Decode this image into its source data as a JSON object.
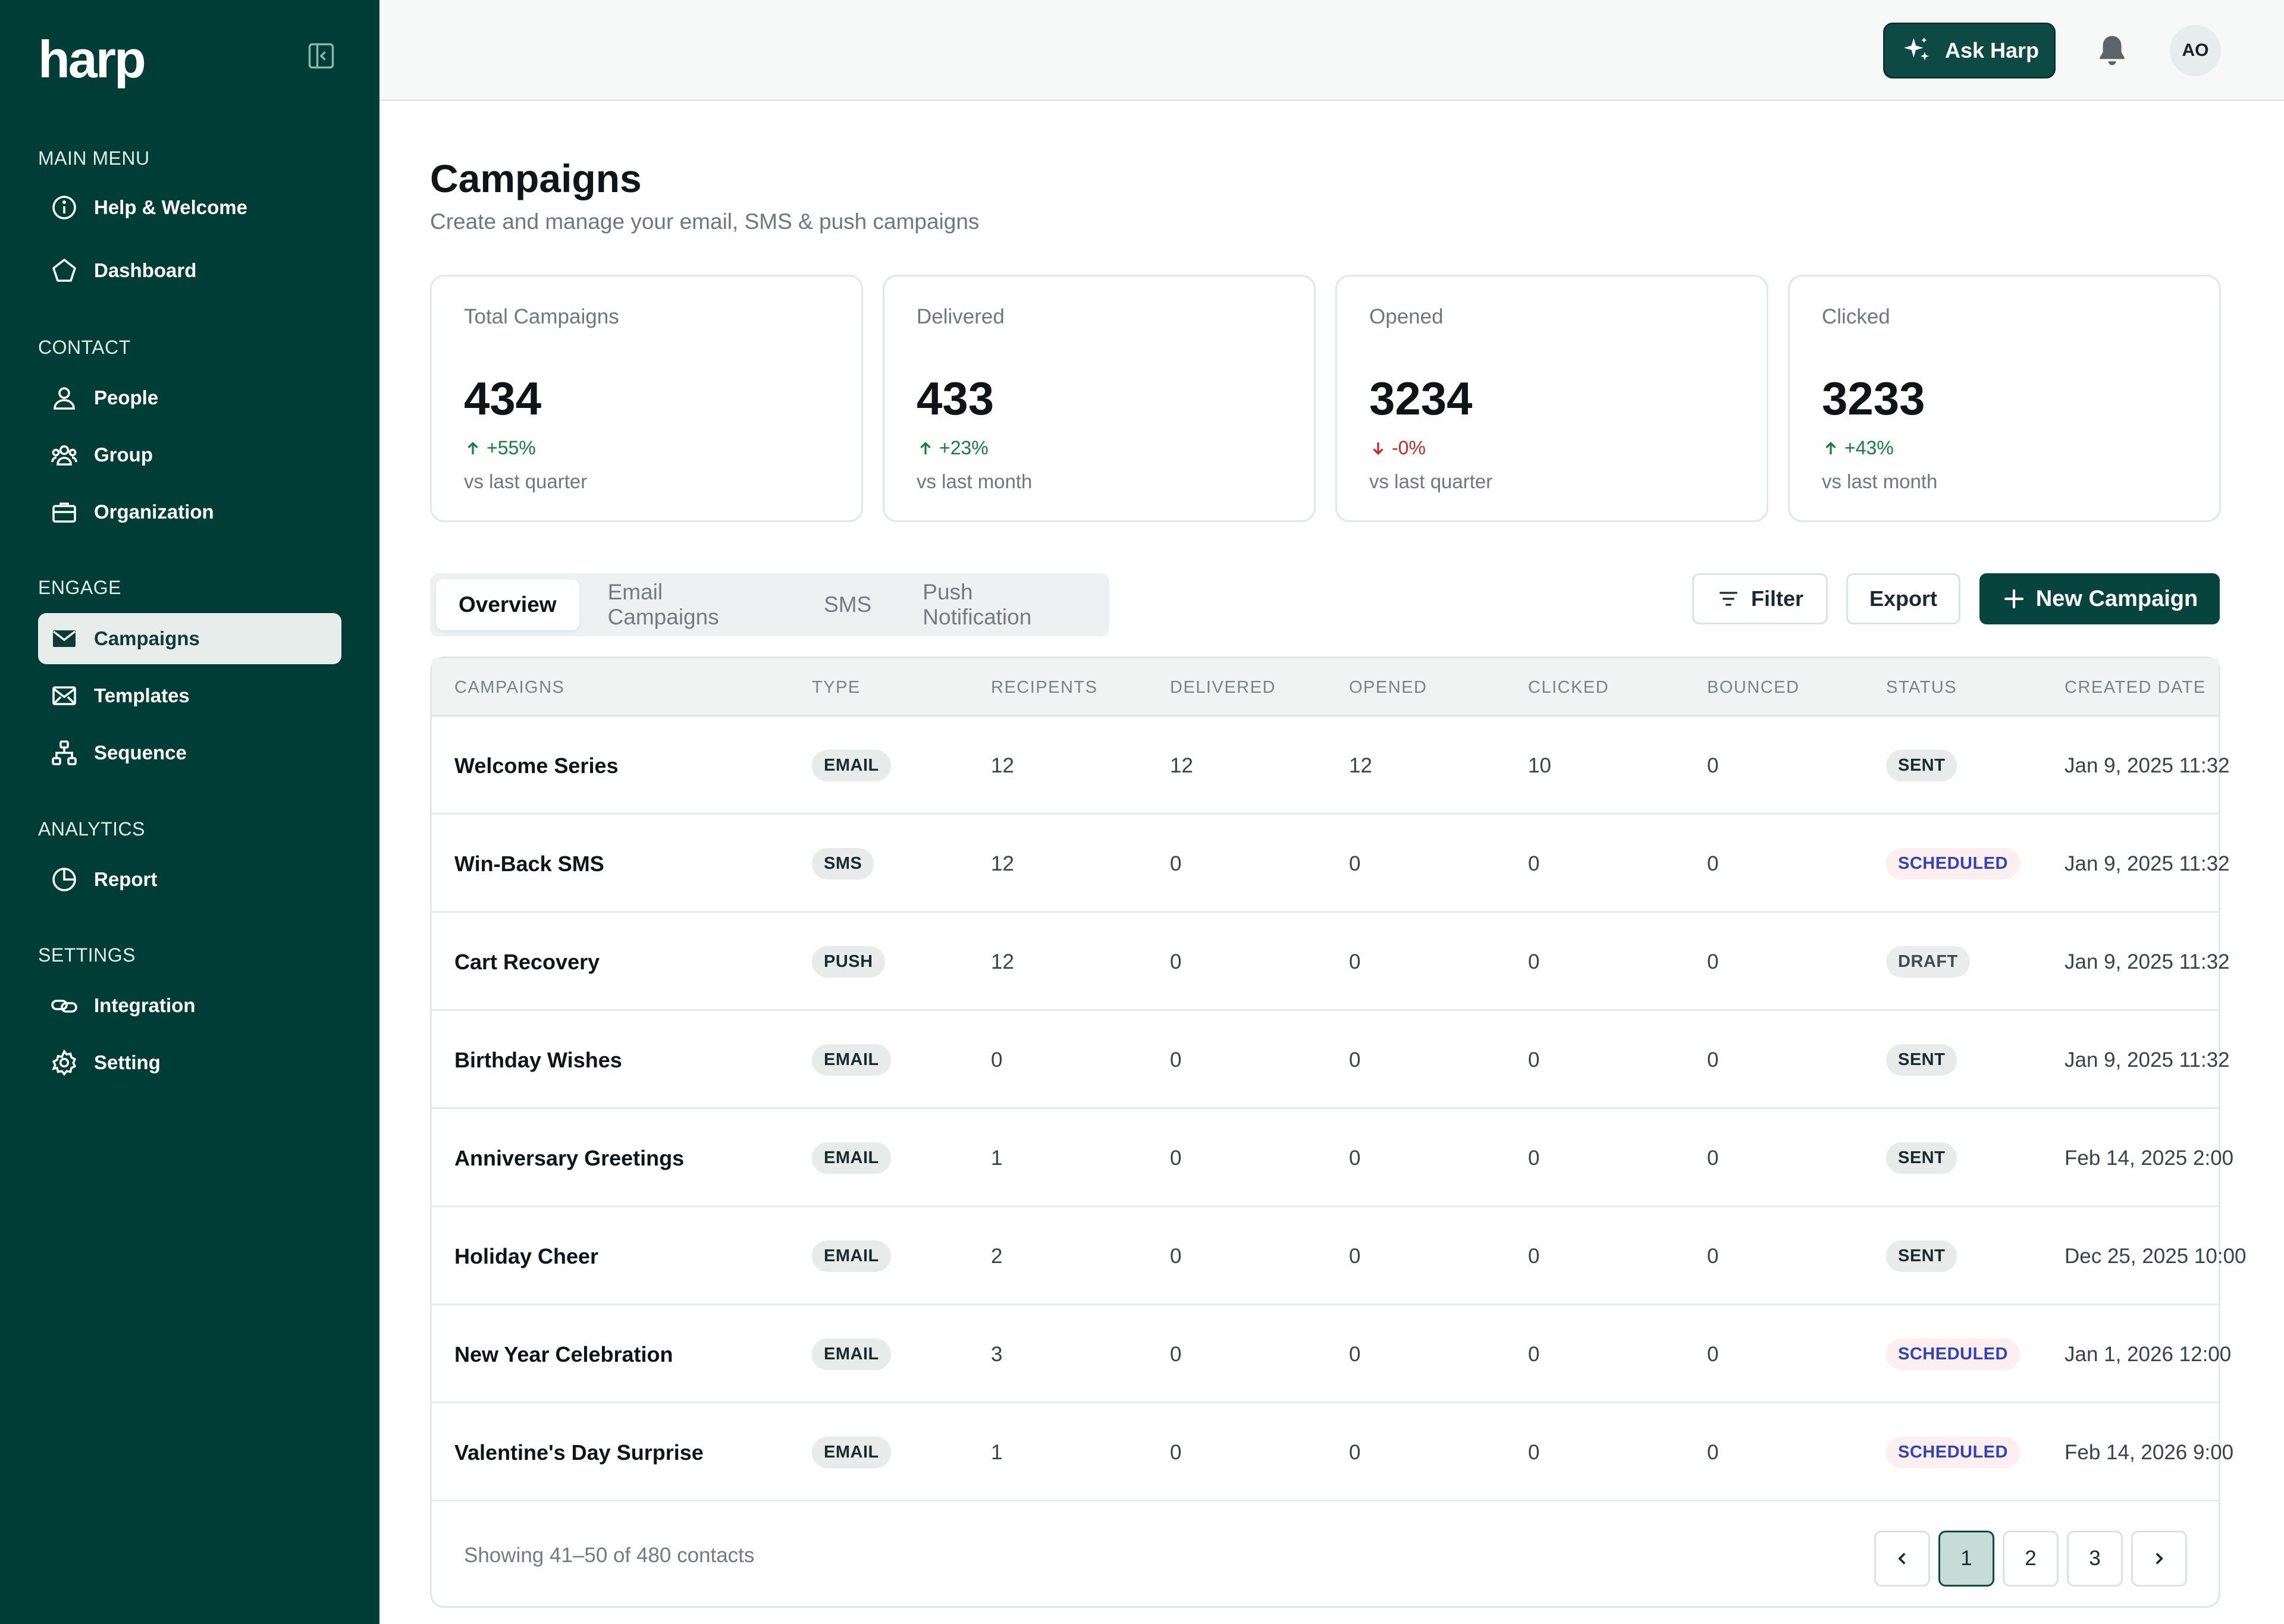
{
  "brand": {
    "logo": "harp"
  },
  "sidebar": {
    "sections": [
      {
        "title": "MAIN MENU",
        "items": [
          {
            "label": "Help & Welcome",
            "icon": "info-icon"
          },
          {
            "label": "Dashboard",
            "icon": "pentagon-icon"
          }
        ]
      },
      {
        "title": "CONTACT",
        "items": [
          {
            "label": "People",
            "icon": "user-icon"
          },
          {
            "label": "Group",
            "icon": "users-icon"
          },
          {
            "label": "Organization",
            "icon": "briefcase-icon"
          }
        ]
      },
      {
        "title": "ENGAGE",
        "items": [
          {
            "label": "Campaigns",
            "icon": "mail-icon",
            "active": true
          },
          {
            "label": "Templates",
            "icon": "mail-template-icon"
          },
          {
            "label": "Sequence",
            "icon": "sitemap-icon"
          }
        ]
      },
      {
        "title": "ANALYTICS",
        "items": [
          {
            "label": "Report",
            "icon": "pie-chart-icon"
          }
        ]
      },
      {
        "title": "SETTINGS",
        "items": [
          {
            "label": "Integration",
            "icon": "link-icon"
          },
          {
            "label": "Setting",
            "icon": "gear-icon"
          }
        ]
      }
    ]
  },
  "topbar": {
    "ask_label": "Ask Harp",
    "avatar_initials": "AO"
  },
  "page": {
    "title": "Campaigns",
    "subtitle": "Create and manage your email, SMS & push campaigns"
  },
  "stats": [
    {
      "label": "Total Campaigns",
      "value": "434",
      "change": "+55%",
      "trend": "up",
      "period": "vs last quarter"
    },
    {
      "label": "Delivered",
      "value": "433",
      "change": "+23%",
      "trend": "up",
      "period": "vs last month"
    },
    {
      "label": "Opened",
      "value": "3234",
      "change": "-0%",
      "trend": "down",
      "period": "vs last quarter"
    },
    {
      "label": "Clicked",
      "value": "3233",
      "change": "+43%",
      "trend": "up",
      "period": "vs last month"
    }
  ],
  "tabs": [
    "Overview",
    "Email Campaigns",
    "SMS",
    "Push Notification"
  ],
  "actions": {
    "filter": "Filter",
    "export": "Export",
    "new_campaign": "New Campaign"
  },
  "table": {
    "columns": [
      "CAMPAIGNS",
      "TYPE",
      "RECIPENTS",
      "DELIVERED",
      "OPENED",
      "CLICKED",
      "BOUNCED",
      "STATUS",
      "CREATED DATE"
    ],
    "rows": [
      {
        "name": "Welcome Series",
        "type": "EMAIL",
        "recipients": "12",
        "delivered": "12",
        "opened": "12",
        "clicked": "10",
        "bounced": "0",
        "status": "SENT",
        "date": "Jan 9, 2025 11:32"
      },
      {
        "name": "Win-Back SMS",
        "type": "SMS",
        "recipients": "12",
        "delivered": "0",
        "opened": "0",
        "clicked": "0",
        "bounced": "0",
        "status": "SCHEDULED",
        "date": "Jan 9, 2025 11:32"
      },
      {
        "name": "Cart Recovery",
        "type": "PUSH",
        "recipients": "12",
        "delivered": "0",
        "opened": "0",
        "clicked": "0",
        "bounced": "0",
        "status": "DRAFT",
        "date": "Jan 9, 2025 11:32"
      },
      {
        "name": "Birthday Wishes",
        "type": "EMAIL",
        "recipients": "0",
        "delivered": "0",
        "opened": "0",
        "clicked": "0",
        "bounced": "0",
        "status": "SENT",
        "date": "Jan 9, 2025 11:32"
      },
      {
        "name": "Anniversary Greetings",
        "type": "EMAIL",
        "recipients": "1",
        "delivered": "0",
        "opened": "0",
        "clicked": "0",
        "bounced": "0",
        "status": "SENT",
        "date": "Feb 14, 2025 2:00"
      },
      {
        "name": "Holiday Cheer",
        "type": "EMAIL",
        "recipients": "2",
        "delivered": "0",
        "opened": "0",
        "clicked": "0",
        "bounced": "0",
        "status": "SENT",
        "date": "Dec 25, 2025 10:00"
      },
      {
        "name": "New Year Celebration",
        "type": "EMAIL",
        "recipients": "3",
        "delivered": "0",
        "opened": "0",
        "clicked": "0",
        "bounced": "0",
        "status": "SCHEDULED",
        "date": "Jan 1, 2026 12:00"
      },
      {
        "name": "Valentine's Day Surprise",
        "type": "EMAIL",
        "recipients": "1",
        "delivered": "0",
        "opened": "0",
        "clicked": "0",
        "bounced": "0",
        "status": "SCHEDULED",
        "date": "Feb 14, 2026 9:00"
      }
    ]
  },
  "pagination": {
    "summary": "Showing 41–50 of 480 contacts",
    "pages": [
      "1",
      "2",
      "3"
    ],
    "current": "1"
  },
  "colors": {
    "sidebar_bg": "#003d36",
    "accent": "#06443d",
    "up": "#15803d",
    "down": "#c62828",
    "scheduled_text": "#2e44b8",
    "scheduled_bg": "#fdeef0"
  }
}
